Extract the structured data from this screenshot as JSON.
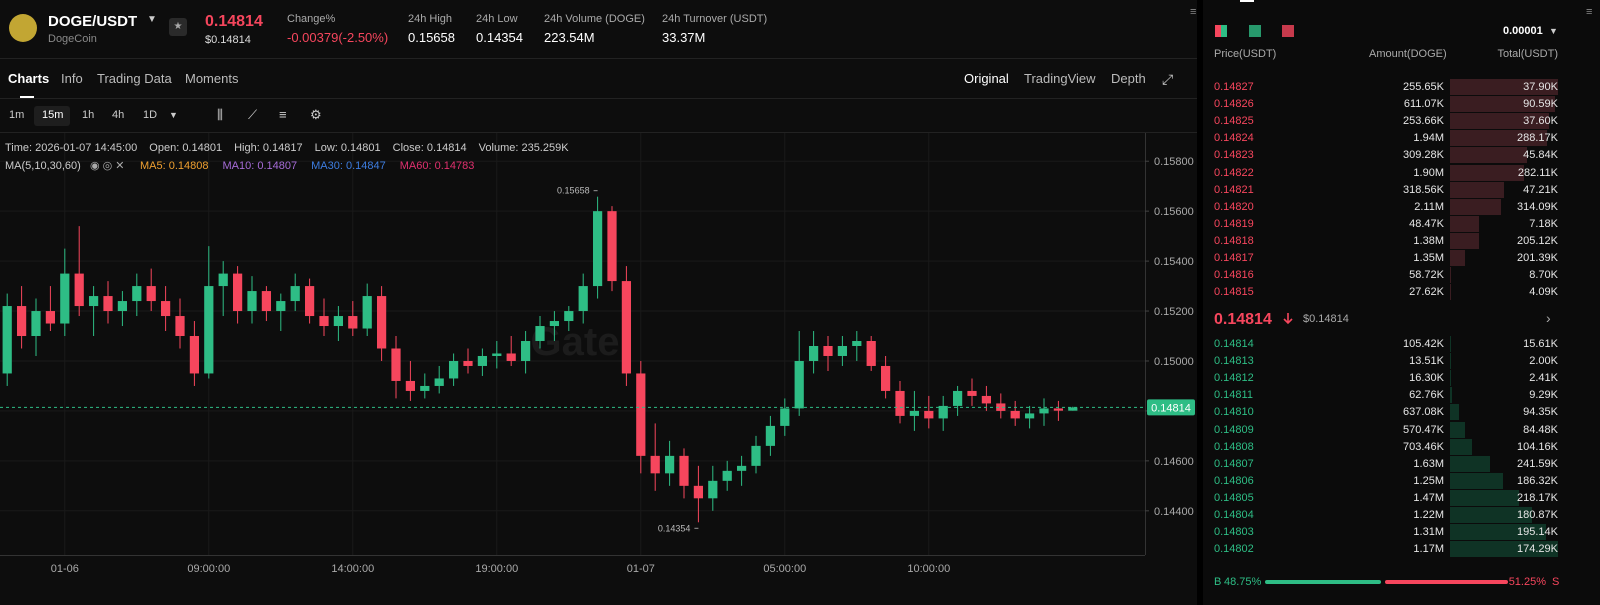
{
  "header": {
    "pair": "DOGE/USDT",
    "name": "DogeCoin",
    "price": "0.14814",
    "price_usd": "$0.14814",
    "stats": [
      {
        "label": "Change%",
        "value": "-0.00379(-2.50%)"
      },
      {
        "label": "24h High",
        "value": "0.15658"
      },
      {
        "label": "24h Low",
        "value": "0.14354"
      },
      {
        "label": "24h Volume (DOGE)",
        "value": "223.54M"
      },
      {
        "label": "24h Turnover (USDT)",
        "value": "33.37M"
      }
    ]
  },
  "tabs": [
    "Charts",
    "Info",
    "Trading Data",
    "Moments"
  ],
  "views": [
    "Original",
    "TradingView",
    "Depth"
  ],
  "intervals": [
    "1m",
    "15m",
    "1h",
    "4h",
    "1D"
  ],
  "legend": {
    "info": [
      "Time: 2026-01-07 14:45:00",
      "Open: 0.14801",
      "High: 0.14817",
      "Low: 0.14801",
      "Close: 0.14814",
      "Volume: 235.259K"
    ],
    "ma": "MA(5,10,30,60)",
    "ma_values": [
      {
        "text": "MA5: 0.14808",
        "color": "#f0a030"
      },
      {
        "text": "MA10: 0.14807",
        "color": "#a66cd8"
      },
      {
        "text": "MA30: 0.14847",
        "color": "#3d7de0"
      },
      {
        "text": "MA60: 0.14783",
        "color": "#e0306e"
      }
    ]
  },
  "chart_data": {
    "type": "candlestick",
    "watermark": "Gate",
    "up_color": "#2ebd85",
    "down_color": "#f6465d",
    "grid": true,
    "categories": [
      null,
      null,
      null,
      null,
      "01-06",
      null,
      null,
      null,
      null,
      null,
      null,
      null,
      null,
      null,
      "09:00:00",
      null,
      null,
      null,
      null,
      null,
      null,
      null,
      null,
      null,
      "14:00:00",
      null,
      null,
      null,
      null,
      null,
      null,
      null,
      null,
      null,
      "19:00:00",
      null,
      null,
      null,
      null,
      null,
      null,
      null,
      null,
      null,
      "01-07",
      null,
      null,
      null,
      null,
      null,
      null,
      null,
      null,
      null,
      "05:00:00",
      null,
      null,
      null,
      null,
      null,
      null,
      null,
      null,
      null,
      "10:00:00",
      null,
      null,
      null,
      null,
      null,
      null,
      null,
      null,
      null,
      null
    ],
    "open": [
      0.1495,
      0.1522,
      0.151,
      0.152,
      0.1515,
      0.1535,
      0.1522,
      0.1526,
      0.152,
      0.1524,
      0.153,
      0.1524,
      0.1518,
      0.151,
      0.1495,
      0.153,
      0.1535,
      0.152,
      0.1528,
      0.152,
      0.1524,
      0.153,
      0.1518,
      0.1514,
      0.1518,
      0.1513,
      0.1526,
      0.1505,
      0.1492,
      0.1488,
      0.149,
      0.1493,
      0.15,
      0.1498,
      0.1502,
      0.1503,
      0.15,
      0.1508,
      0.1514,
      0.1516,
      0.152,
      0.153,
      0.156,
      0.1532,
      0.1495,
      0.1462,
      0.1455,
      0.1462,
      0.145,
      0.1445,
      0.1452,
      0.1456,
      0.1458,
      0.1466,
      0.1474,
      0.1481,
      0.15,
      0.1506,
      0.1502,
      0.1506,
      0.1508,
      0.1498,
      0.1488,
      0.1478,
      0.148,
      0.1477,
      0.1482,
      0.1488,
      0.1486,
      0.1483,
      0.148,
      0.1477,
      0.1479,
      0.1481,
      0.14801
    ],
    "high": [
      0.1527,
      0.153,
      0.1525,
      0.153,
      0.1545,
      0.1554,
      0.153,
      0.1532,
      0.1528,
      0.1535,
      0.1537,
      0.153,
      0.1525,
      0.1516,
      0.1546,
      0.154,
      0.1538,
      0.1534,
      0.153,
      0.1527,
      0.1535,
      0.1533,
      0.1525,
      0.1522,
      0.1524,
      0.1531,
      0.153,
      0.151,
      0.15,
      0.1495,
      0.1498,
      0.1503,
      0.1505,
      0.1505,
      0.1508,
      0.151,
      0.1512,
      0.1518,
      0.152,
      0.1522,
      0.1535,
      0.15658,
      0.1562,
      0.1538,
      0.15,
      0.1475,
      0.1468,
      0.1465,
      0.1458,
      0.1458,
      0.146,
      0.1462,
      0.147,
      0.1478,
      0.1485,
      0.1512,
      0.1512,
      0.151,
      0.151,
      0.1512,
      0.151,
      0.1502,
      0.1492,
      0.1488,
      0.1486,
      0.1486,
      0.149,
      0.1493,
      0.149,
      0.1487,
      0.1484,
      0.1482,
      0.1485,
      0.1484,
      0.14817
    ],
    "low": [
      0.149,
      0.1505,
      0.1502,
      0.1512,
      0.151,
      0.1518,
      0.151,
      0.1515,
      0.1514,
      0.1518,
      0.152,
      0.1512,
      0.1505,
      0.149,
      0.1493,
      0.1518,
      0.1515,
      0.1515,
      0.1516,
      0.1512,
      0.152,
      0.1515,
      0.151,
      0.1508,
      0.151,
      0.151,
      0.15,
      0.1485,
      0.1484,
      0.1485,
      0.1487,
      0.149,
      0.1495,
      0.1494,
      0.1497,
      0.1498,
      0.1495,
      0.1505,
      0.1508,
      0.1512,
      0.1515,
      0.1525,
      0.1528,
      0.149,
      0.1455,
      0.1448,
      0.145,
      0.1445,
      0.14354,
      0.144,
      0.1448,
      0.145,
      0.1455,
      0.1462,
      0.147,
      0.1478,
      0.1495,
      0.1496,
      0.1498,
      0.15,
      0.1496,
      0.1485,
      0.1475,
      0.1472,
      0.1473,
      0.1472,
      0.1478,
      0.1482,
      0.148,
      0.1477,
      0.1474,
      0.1473,
      0.1474,
      0.1476,
      0.14801
    ],
    "close": [
      0.1522,
      0.151,
      0.152,
      0.1515,
      0.1535,
      0.1522,
      0.1526,
      0.152,
      0.1524,
      0.153,
      0.1524,
      0.1518,
      0.151,
      0.1495,
      0.153,
      0.1535,
      0.152,
      0.1528,
      0.152,
      0.1524,
      0.153,
      0.1518,
      0.1514,
      0.1518,
      0.1513,
      0.1526,
      0.1505,
      0.1492,
      0.1488,
      0.149,
      0.1493,
      0.15,
      0.1498,
      0.1502,
      0.1503,
      0.15,
      0.1508,
      0.1514,
      0.1516,
      0.152,
      0.153,
      0.156,
      0.1532,
      0.1495,
      0.1462,
      0.1455,
      0.1462,
      0.145,
      0.1445,
      0.1452,
      0.1456,
      0.1458,
      0.1466,
      0.1474,
      0.1481,
      0.15,
      0.1506,
      0.1502,
      0.1506,
      0.1508,
      0.1498,
      0.1488,
      0.1478,
      0.148,
      0.1477,
      0.1482,
      0.1488,
      0.1486,
      0.1483,
      0.148,
      0.1477,
      0.1479,
      0.1481,
      0.14801,
      0.14814
    ],
    "ylim": [
      0.14223,
      0.15913
    ],
    "yticks": [
      {
        "value": 0.144,
        "label": "0.14400"
      },
      {
        "value": 0.146,
        "label": "0.14600"
      },
      {
        "value": 0.148,
        "label": "0.14800"
      },
      {
        "value": 0.15,
        "label": "0.15000"
      },
      {
        "value": 0.152,
        "label": "0.15200"
      },
      {
        "value": 0.154,
        "label": "0.15400"
      },
      {
        "value": 0.156,
        "label": "0.15600"
      },
      {
        "value": 0.158,
        "label": "0.15800"
      }
    ],
    "annotations": [
      {
        "value": 0.15658,
        "label": "0.15658"
      },
      {
        "value": 0.14354,
        "label": "0.14354"
      }
    ],
    "last_price": {
      "value": 0.14814,
      "label": "0.14814"
    }
  },
  "order_book": {
    "precision": "0.00001",
    "columns": [
      "Price(USDT)",
      "Amount(DOGE)",
      "Total(USDT)"
    ],
    "asks": [
      [
        "0.14827",
        "255.65K",
        "37.90K"
      ],
      [
        "0.14826",
        "611.07K",
        "90.59K"
      ],
      [
        "0.14825",
        "253.66K",
        "37.60K"
      ],
      [
        "0.14824",
        "1.94M",
        "288.17K"
      ],
      [
        "0.14823",
        "309.28K",
        "45.84K"
      ],
      [
        "0.14822",
        "1.90M",
        "282.11K"
      ],
      [
        "0.14821",
        "318.56K",
        "47.21K"
      ],
      [
        "0.14820",
        "2.11M",
        "314.09K"
      ],
      [
        "0.14819",
        "48.47K",
        "7.18K"
      ],
      [
        "0.14818",
        "1.38M",
        "205.12K"
      ],
      [
        "0.14817",
        "1.35M",
        "201.39K"
      ],
      [
        "0.14816",
        "58.72K",
        "8.70K"
      ],
      [
        "0.14815",
        "27.62K",
        "4.09K"
      ]
    ],
    "last": "0.14814",
    "last_usd": "$0.14814",
    "bids": [
      [
        "0.14814",
        "105.42K",
        "15.61K"
      ],
      [
        "0.14813",
        "13.51K",
        "2.00K"
      ],
      [
        "0.14812",
        "16.30K",
        "2.41K"
      ],
      [
        "0.14811",
        "62.76K",
        "9.29K"
      ],
      [
        "0.14810",
        "637.08K",
        "94.35K"
      ],
      [
        "0.14809",
        "570.47K",
        "84.48K"
      ],
      [
        "0.14808",
        "703.46K",
        "104.16K"
      ],
      [
        "0.14807",
        "1.63M",
        "241.59K"
      ],
      [
        "0.14806",
        "1.25M",
        "186.32K"
      ],
      [
        "0.14805",
        "1.47M",
        "218.17K"
      ],
      [
        "0.14804",
        "1.22M",
        "180.87K"
      ],
      [
        "0.14803",
        "1.31M",
        "195.14K"
      ],
      [
        "0.14802",
        "1.17M",
        "174.29K"
      ]
    ],
    "ratio": {
      "buy_label": "B",
      "buy": "48.75%",
      "sell": "51.25%",
      "sell_label": "S"
    }
  }
}
